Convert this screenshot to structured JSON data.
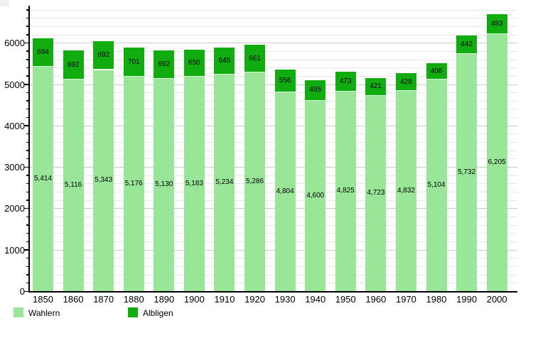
{
  "chart_data": {
    "type": "bar",
    "stacked": true,
    "title": "",
    "xlabel": "",
    "ylabel": "",
    "categories": [
      "1850",
      "1860",
      "1870",
      "1880",
      "1890",
      "1900",
      "1910",
      "1920",
      "1930",
      "1940",
      "1950",
      "1960",
      "1970",
      "1980",
      "1990",
      "2000"
    ],
    "series": [
      {
        "name": "Wahlern",
        "color": "#99E699",
        "values": [
          5414,
          5116,
          5343,
          5176,
          5130,
          5183,
          5234,
          5286,
          4804,
          4600,
          4825,
          4723,
          4832,
          5104,
          5732,
          6205
        ],
        "display_values": [
          "5,414",
          "5,116",
          "5,343",
          "5,176",
          "5,130",
          "5,183",
          "5,234",
          "5,286",
          "4,804",
          "4,600",
          "4,825",
          "4,723",
          "4,832",
          "5,104",
          "5,732",
          "6,205"
        ]
      },
      {
        "name": "Albligen",
        "color": "#10AC10",
        "values": [
          694,
          692,
          692,
          701,
          692,
          650,
          645,
          661,
          556,
          495,
          473,
          421,
          428,
          406,
          442,
          483
        ],
        "display_values": [
          "694",
          "692",
          "692",
          "701",
          "692",
          "650",
          "645",
          "661",
          "556",
          "495",
          "473",
          "421",
          "428",
          "406",
          "442",
          "483"
        ]
      }
    ],
    "ylim": [
      0,
      6850
    ],
    "yticks": [
      0,
      1000,
      2000,
      3000,
      4000,
      5000,
      6000
    ],
    "ytick_labels": [
      "0",
      "1000",
      "2000",
      "3000",
      "4000",
      "5000",
      "6000"
    ],
    "minor_grid_step": 200,
    "grid": true,
    "legend_position": "bottom",
    "legend_items": [
      {
        "label": "Wahlern",
        "color": "#99E699"
      },
      {
        "label": "Albligen",
        "color": "#10AC10"
      }
    ]
  }
}
